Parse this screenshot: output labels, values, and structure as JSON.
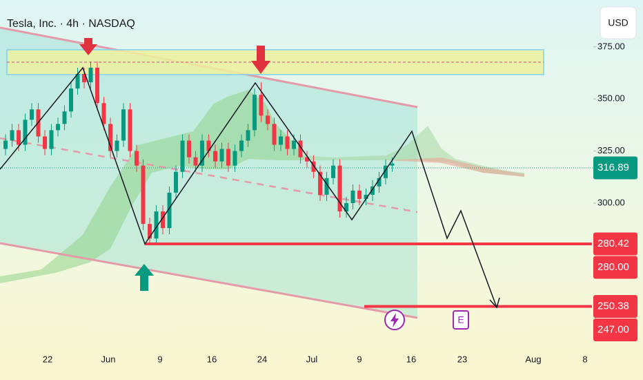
{
  "chart_data": {
    "type": "candlestick",
    "title": "Tesla, Inc. · 4h · NASDAQ",
    "currency": "USD",
    "up_color": "#089981",
    "down_color": "#f23645",
    "ylim": [
      230,
      397.5
    ],
    "yticks": [
      {
        "value": 375,
        "label": "375.00"
      },
      {
        "value": 350,
        "label": "350.00"
      },
      {
        "value": 325,
        "label": "325.00"
      },
      {
        "value": 300,
        "label": "300.00"
      }
    ],
    "x_labels": [
      "22",
      "Jun",
      "9",
      "16",
      "24",
      "Jul",
      "9",
      "16",
      "23",
      "Aug",
      "8"
    ],
    "open": [
      326,
      330,
      335,
      328,
      340,
      345,
      332,
      326,
      335,
      338,
      344,
      355,
      362,
      358,
      365,
      348,
      338,
      325,
      330,
      345,
      325,
      318,
      290,
      283,
      296,
      288,
      305,
      315,
      330,
      322,
      318,
      330,
      325,
      320,
      326,
      318,
      325,
      330,
      335,
      352,
      342,
      338,
      328,
      332,
      326,
      330,
      322,
      320,
      315,
      304,
      312,
      318,
      296,
      300,
      306,
      302,
      304,
      308,
      312,
      318
    ],
    "high": [
      333,
      338,
      338,
      343,
      348,
      348,
      335,
      338,
      341,
      347,
      358,
      365,
      365,
      368,
      368,
      351,
      341,
      333,
      348,
      348,
      328,
      321,
      293,
      299,
      299,
      308,
      318,
      333,
      333,
      325,
      333,
      333,
      328,
      329,
      329,
      328,
      333,
      338,
      355,
      358,
      345,
      341,
      335,
      335,
      333,
      333,
      325,
      323,
      318,
      315,
      321,
      321,
      303,
      309,
      309,
      307,
      311,
      315,
      321,
      322
    ],
    "low": [
      323,
      327,
      325,
      325,
      337,
      329,
      323,
      323,
      332,
      335,
      341,
      352,
      355,
      355,
      345,
      335,
      322,
      322,
      327,
      322,
      315,
      287,
      280,
      280,
      285,
      285,
      302,
      312,
      319,
      315,
      315,
      322,
      317,
      317,
      315,
      315,
      322,
      327,
      332,
      339,
      335,
      325,
      325,
      323,
      323,
      319,
      317,
      312,
      301,
      301,
      309,
      293,
      293,
      297,
      299,
      299,
      301,
      305,
      309,
      315
    ],
    "close": [
      330,
      335,
      328,
      340,
      345,
      332,
      326,
      335,
      338,
      344,
      355,
      362,
      358,
      365,
      348,
      338,
      325,
      330,
      345,
      325,
      318,
      290,
      283,
      296,
      288,
      305,
      315,
      330,
      322,
      318,
      330,
      325,
      320,
      326,
      318,
      325,
      330,
      335,
      352,
      342,
      338,
      328,
      332,
      326,
      330,
      322,
      320,
      315,
      304,
      312,
      318,
      296,
      300,
      306,
      302,
      304,
      308,
      312,
      318,
      319
    ],
    "price_labels": [
      {
        "value": 316.89,
        "color": "#089981",
        "line": "dotted"
      },
      {
        "value": 280.42,
        "color": "#f23645",
        "line": "solid"
      },
      {
        "value": 280,
        "label": "280.00",
        "color": "#f23645"
      },
      {
        "value": 250.38,
        "color": "#f23645",
        "line": "solid"
      },
      {
        "value": 247,
        "label": "247.00",
        "color": "#f23645"
      }
    ],
    "events": [
      "E"
    ]
  }
}
